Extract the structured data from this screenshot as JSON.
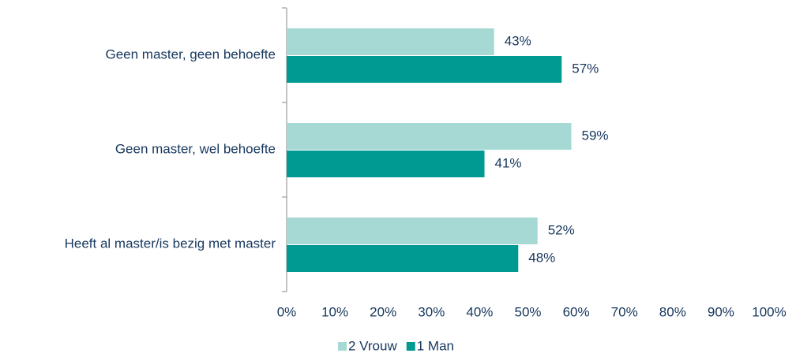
{
  "chart_data": {
    "type": "bar",
    "orientation": "horizontal",
    "categories": [
      "Geen master, geen behoefte",
      "Geen master, wel behoefte",
      "Heeft al master/is bezig met master"
    ],
    "series": [
      {
        "name": "2 Vrouw",
        "color": "#a6d9d4",
        "values": [
          43,
          59,
          52
        ],
        "value_labels": [
          "43%",
          "59%",
          "52%"
        ]
      },
      {
        "name": "1 Man",
        "color": "#009a93",
        "values": [
          57,
          41,
          48
        ],
        "value_labels": [
          "57%",
          "41%",
          "48%"
        ]
      }
    ],
    "xlim": [
      0,
      100
    ],
    "xticks": [
      {
        "value": 0,
        "label": "0%"
      },
      {
        "value": 10,
        "label": "10%"
      },
      {
        "value": 20,
        "label": "20%"
      },
      {
        "value": 30,
        "label": "30%"
      },
      {
        "value": 40,
        "label": "40%"
      },
      {
        "value": 50,
        "label": "50%"
      },
      {
        "value": 60,
        "label": "60%"
      },
      {
        "value": 70,
        "label": "70%"
      },
      {
        "value": 80,
        "label": "80%"
      },
      {
        "value": 90,
        "label": "90%"
      },
      {
        "value": 100,
        "label": "100%"
      }
    ],
    "grid": false,
    "legend": "bottom"
  }
}
